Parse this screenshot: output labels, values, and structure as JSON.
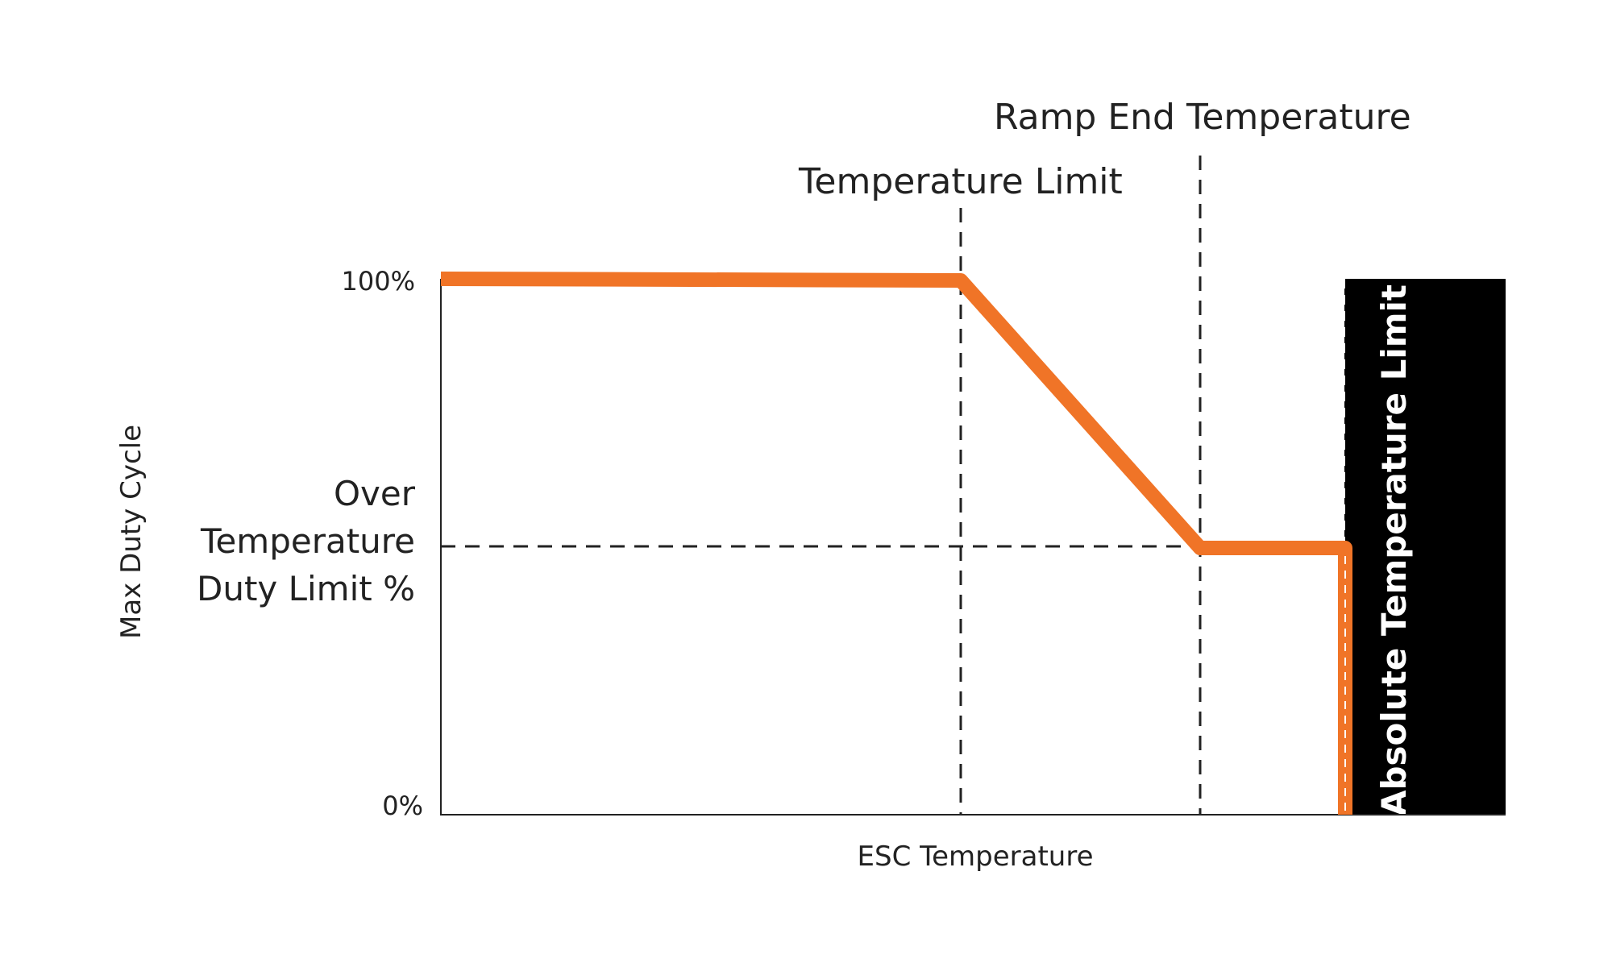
{
  "labels": {
    "ramp_end": "Ramp End Temperature",
    "temp_limit": "Temperature Limit",
    "y_top": "100%",
    "y_bottom": "0%",
    "over_line1": "Over",
    "over_line2": "Temperature",
    "over_line3": "Duty Limit %",
    "x_axis": "ESC Temperature",
    "y_axis": "Max Duty Cycle",
    "absolute": "Absolute Temperature Limit"
  },
  "colors": {
    "curve": "#f07427",
    "ink": "#222222",
    "block": "#000000",
    "block_text": "#ffffff"
  }
}
